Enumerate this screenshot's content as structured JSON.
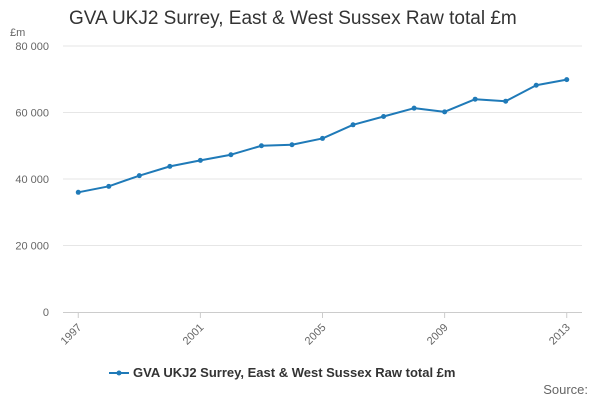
{
  "chart_data": {
    "type": "line",
    "title": "GVA UKJ2 Surrey, East & West Sussex Raw total £m",
    "ylabel": "£m",
    "xlabel": "",
    "ylim": [
      0,
      80000
    ],
    "yticks": [
      0,
      20000,
      40000,
      60000,
      80000
    ],
    "ytick_labels": [
      "0",
      "20 000",
      "40 000",
      "60 000",
      "80 000"
    ],
    "xticks": [
      1997,
      2001,
      2005,
      2009,
      2013
    ],
    "xtick_labels": [
      "1997",
      "2001",
      "2005",
      "2009",
      "2013"
    ],
    "grid": "horizontal",
    "legend": "bottom",
    "series": [
      {
        "name": "GVA UKJ2 Surrey, East & West Sussex Raw total £m",
        "color": "#1f7ab8",
        "x": [
          1997,
          1998,
          1999,
          2000,
          2001,
          2002,
          2003,
          2004,
          2005,
          2006,
          2007,
          2008,
          2009,
          2010,
          2011,
          2012,
          2013
        ],
        "y": [
          36000,
          37800,
          41000,
          43800,
          45600,
          47300,
          50000,
          50300,
          52200,
          56300,
          58800,
          61300,
          60200,
          64000,
          63400,
          68200,
          69900
        ]
      }
    ],
    "source_label": "Source:"
  }
}
